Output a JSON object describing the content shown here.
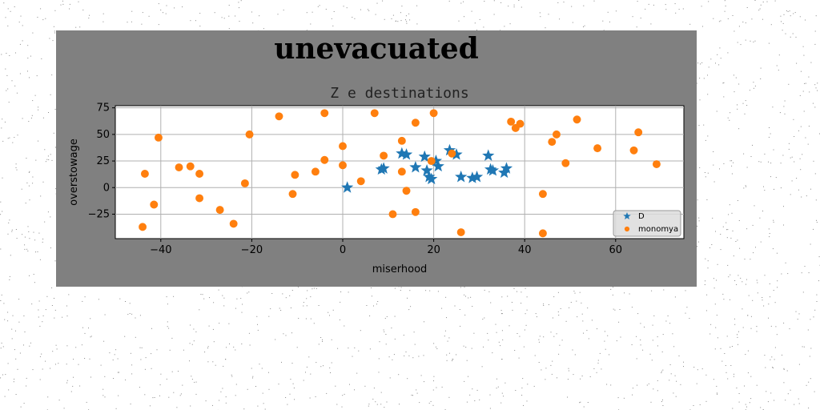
{
  "chart_data": {
    "type": "scatter",
    "suptitle": "unevacuated",
    "title": "Z e destinations",
    "xlabel": "miserhood",
    "ylabel": "overstowage",
    "xlim": [
      -50,
      75
    ],
    "ylim": [
      -48,
      77
    ],
    "xticks": [
      -40,
      -20,
      0,
      20,
      40,
      60
    ],
    "yticks": [
      -25,
      0,
      25,
      50,
      75
    ],
    "xtick_labels": [
      "−40",
      "−20",
      "0",
      "20",
      "40",
      "60"
    ],
    "ytick_labels": [
      "−25",
      "0",
      "25",
      "50",
      "75"
    ],
    "grid": true,
    "legend_position": "lower-right",
    "series": [
      {
        "name": "D",
        "marker": "star",
        "color": "#1f77b4",
        "points": [
          [
            1,
            0
          ],
          [
            8.5,
            17
          ],
          [
            9,
            18
          ],
          [
            13,
            32
          ],
          [
            14,
            31
          ],
          [
            16,
            19
          ],
          [
            18,
            29
          ],
          [
            18.5,
            16
          ],
          [
            19,
            10
          ],
          [
            19.5,
            8
          ],
          [
            20.5,
            25
          ],
          [
            21,
            20
          ],
          [
            23.5,
            35
          ],
          [
            25,
            31
          ],
          [
            26,
            10
          ],
          [
            28.5,
            9
          ],
          [
            29.5,
            10
          ],
          [
            32,
            30
          ],
          [
            32.5,
            17
          ],
          [
            33,
            16
          ],
          [
            35.5,
            14
          ],
          [
            36,
            18
          ]
        ]
      },
      {
        "name": "monomya",
        "marker": "circle",
        "color": "#ff7f0e",
        "points": [
          [
            -44,
            -37
          ],
          [
            -43.5,
            13
          ],
          [
            -41.5,
            -16
          ],
          [
            -40.5,
            47
          ],
          [
            -36,
            19
          ],
          [
            -33.5,
            20
          ],
          [
            -31.5,
            13
          ],
          [
            -31.5,
            -10
          ],
          [
            -27,
            -21
          ],
          [
            -24,
            -34
          ],
          [
            -21.5,
            4
          ],
          [
            -20.5,
            50
          ],
          [
            -14,
            67
          ],
          [
            -11,
            -6
          ],
          [
            -10.5,
            12
          ],
          [
            -6,
            15
          ],
          [
            -4,
            26
          ],
          [
            -4,
            70
          ],
          [
            0,
            39
          ],
          [
            0,
            21
          ],
          [
            4,
            6
          ],
          [
            7,
            70
          ],
          [
            9,
            30
          ],
          [
            11,
            -25
          ],
          [
            13,
            15
          ],
          [
            13,
            44
          ],
          [
            14,
            -3
          ],
          [
            16,
            61
          ],
          [
            16,
            -23
          ],
          [
            19.5,
            25
          ],
          [
            20,
            70
          ],
          [
            24,
            32
          ],
          [
            26,
            -42
          ],
          [
            37,
            62
          ],
          [
            38,
            56
          ],
          [
            39,
            60
          ],
          [
            44,
            -6
          ],
          [
            44,
            -43
          ],
          [
            46,
            43
          ],
          [
            47,
            50
          ],
          [
            49,
            23
          ],
          [
            51.5,
            64
          ],
          [
            56,
            37
          ],
          [
            64,
            35
          ],
          [
            65,
            52
          ],
          [
            69,
            22
          ]
        ]
      }
    ]
  }
}
